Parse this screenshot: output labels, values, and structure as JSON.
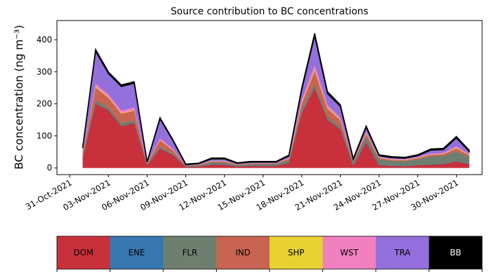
{
  "chart_data": {
    "type": "stacked_area",
    "title": "Source contribution to BC concentrations",
    "y_label": "BC concentration (ng m⁻³)",
    "x": [
      "2021-11-01",
      "2021-11-02",
      "2021-11-03",
      "2021-11-04",
      "2021-11-05",
      "2021-11-06",
      "2021-11-07",
      "2021-11-08",
      "2021-11-09",
      "2021-11-10",
      "2021-11-11",
      "2021-11-12",
      "2021-11-13",
      "2021-11-14",
      "2021-11-15",
      "2021-11-16",
      "2021-11-17",
      "2021-11-18",
      "2021-11-19",
      "2021-11-20",
      "2021-11-21",
      "2021-11-22",
      "2021-11-23",
      "2021-11-24",
      "2021-11-25",
      "2021-11-26",
      "2021-11-27",
      "2021-11-28",
      "2021-11-29",
      "2021-11-30",
      "2021-12-01"
    ],
    "xlim": [
      "2021-10-30",
      "2021-12-02"
    ],
    "xticks": [
      {
        "value": "2021-10-31",
        "label": "31-Oct-2021"
      },
      {
        "value": "2021-11-03",
        "label": "03-Nov-2021"
      },
      {
        "value": "2021-11-06",
        "label": "06-Nov-2021"
      },
      {
        "value": "2021-11-09",
        "label": "09-Nov-2021"
      },
      {
        "value": "2021-11-12",
        "label": "12-Nov-2021"
      },
      {
        "value": "2021-11-15",
        "label": "15-Nov-2021"
      },
      {
        "value": "2021-11-18",
        "label": "18-Nov-2021"
      },
      {
        "value": "2021-11-21",
        "label": "21-Nov-2021"
      },
      {
        "value": "2021-11-24",
        "label": "24-Nov-2021"
      },
      {
        "value": "2021-11-27",
        "label": "27-Nov-2021"
      },
      {
        "value": "2021-11-30",
        "label": "30-Nov-2021"
      }
    ],
    "ylim": [
      -21,
      460
    ],
    "yticks": [
      0,
      100,
      200,
      300,
      400
    ],
    "series": [
      {
        "name": "DOM",
        "color": "#c8303b",
        "values": [
          30,
          200,
          180,
          130,
          140,
          8,
          60,
          40,
          3,
          4,
          10,
          10,
          4,
          6,
          6,
          6,
          15,
          170,
          250,
          150,
          120,
          6,
          80,
          8,
          6,
          5,
          8,
          10,
          12,
          20,
          12
        ]
      },
      {
        "name": "ENE",
        "color": "#3877b0",
        "values": [
          1,
          1,
          1,
          1,
          1,
          1,
          1,
          1,
          1,
          1,
          1,
          1,
          1,
          1,
          1,
          1,
          1,
          1,
          1,
          1,
          1,
          1,
          1,
          1,
          1,
          1,
          1,
          1,
          1,
          1,
          1
        ]
      },
      {
        "name": "FLR",
        "color": "#6e7f70",
        "values": [
          5,
          10,
          8,
          8,
          8,
          3,
          5,
          4,
          3,
          3,
          6,
          6,
          4,
          5,
          5,
          5,
          8,
          10,
          12,
          10,
          8,
          12,
          15,
          18,
          15,
          15,
          18,
          25,
          25,
          30,
          22
        ]
      },
      {
        "name": "IND",
        "color": "#c96452",
        "values": [
          8,
          40,
          30,
          30,
          30,
          2,
          20,
          10,
          1,
          2,
          3,
          3,
          2,
          2,
          2,
          2,
          4,
          20,
          40,
          25,
          20,
          2,
          10,
          4,
          3,
          3,
          4,
          5,
          5,
          10,
          5
        ]
      },
      {
        "name": "SHP",
        "color": "#e8d232",
        "values": [
          1,
          3,
          2,
          2,
          2,
          0,
          1,
          1,
          0,
          0,
          1,
          1,
          0,
          0,
          0,
          0,
          1,
          3,
          4,
          3,
          2,
          0,
          2,
          1,
          1,
          1,
          1,
          1,
          1,
          2,
          1
        ]
      },
      {
        "name": "WST",
        "color": "#f080c0",
        "values": [
          2,
          10,
          8,
          8,
          8,
          1,
          6,
          4,
          0,
          1,
          1,
          1,
          1,
          1,
          1,
          1,
          2,
          10,
          15,
          8,
          6,
          1,
          4,
          2,
          2,
          2,
          2,
          3,
          3,
          5,
          2
        ]
      },
      {
        "name": "TRA",
        "color": "#9370db",
        "values": [
          15,
          100,
          65,
          75,
          75,
          3,
          60,
          25,
          2,
          2,
          6,
          6,
          2,
          3,
          3,
          3,
          6,
          30,
          90,
          35,
          35,
          4,
          15,
          4,
          4,
          3,
          4,
          10,
          10,
          25,
          8
        ]
      },
      {
        "name": "BB",
        "color": "#000000",
        "values": [
          3,
          6,
          5,
          5,
          5,
          2,
          4,
          3,
          2,
          2,
          3,
          3,
          2,
          2,
          2,
          2,
          3,
          6,
          8,
          6,
          5,
          3,
          4,
          3,
          3,
          3,
          3,
          4,
          4,
          5,
          4
        ]
      }
    ]
  }
}
